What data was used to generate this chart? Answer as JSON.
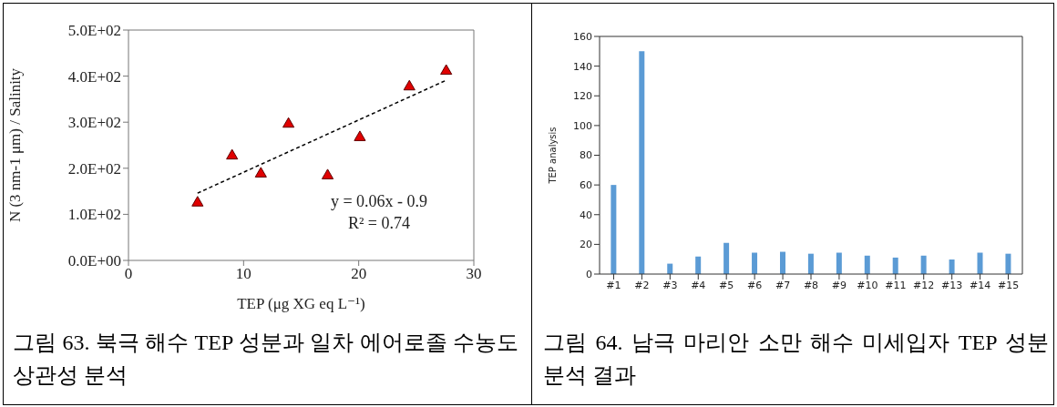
{
  "chart_data": [
    {
      "type": "scatter",
      "title": "그림 63. 북극 해수 TEP 성분과 일차 에어로졸 수농도 상관성 분석",
      "xlabel": "TEP (μg XG eq L⁻¹)",
      "ylabel": "N (3 nm-1 μm) / Salinity",
      "series": [
        {
          "type": "scatter",
          "color": "#e00000",
          "marker": "triangle",
          "x": [
            6.0,
            9.0,
            11.5,
            13.9,
            17.3,
            20.1,
            24.4,
            27.6
          ],
          "values": [
            125,
            227,
            188,
            296,
            184,
            267,
            377,
            411
          ]
        },
        {
          "type": "line",
          "color": "#000000",
          "marker": "none",
          "line_style": "dashed",
          "x": [
            6.0,
            27.6
          ],
          "values": [
            146,
            391
          ]
        }
      ],
      "xlim": [
        0,
        30
      ],
      "xticks": [
        0,
        10,
        20,
        30
      ],
      "ylim": [
        0,
        500
      ],
      "yticks": [
        {
          "value": 0,
          "label": "0.0E+00"
        },
        {
          "value": 100,
          "label": "1.0E+02"
        },
        {
          "value": 200,
          "label": "2.0E+02"
        },
        {
          "value": 300,
          "label": "3.0E+02"
        },
        {
          "value": 400,
          "label": "4.0E+02"
        },
        {
          "value": 500,
          "label": "5.0E+02"
        }
      ],
      "annotations": [
        "y = 0.06x - 0.9",
        "R² = 0.74"
      ],
      "grid": false,
      "legend": false
    },
    {
      "type": "bar",
      "title": "그림 64. 남극 마리안 소만 해수 미세입자 TEP 성분 분석 결과",
      "ylabel": "TEP analysis",
      "categories": [
        "#1",
        "#2",
        "#3",
        "#4",
        "#5",
        "#6",
        "#7",
        "#8",
        "#9",
        "#10",
        "#11",
        "#12",
        "#13",
        "#14",
        "#15"
      ],
      "values": [
        60,
        150,
        7,
        11.8,
        21,
        14.4,
        15,
        13.7,
        14.4,
        12.4,
        11.1,
        12.4,
        9.8,
        14.4,
        13.7
      ],
      "color": "#5b9bd5",
      "ylim": [
        0,
        160
      ],
      "yticks": [
        0,
        20,
        40,
        60,
        80,
        100,
        120,
        140,
        160
      ],
      "grid": false,
      "legend": false
    }
  ]
}
